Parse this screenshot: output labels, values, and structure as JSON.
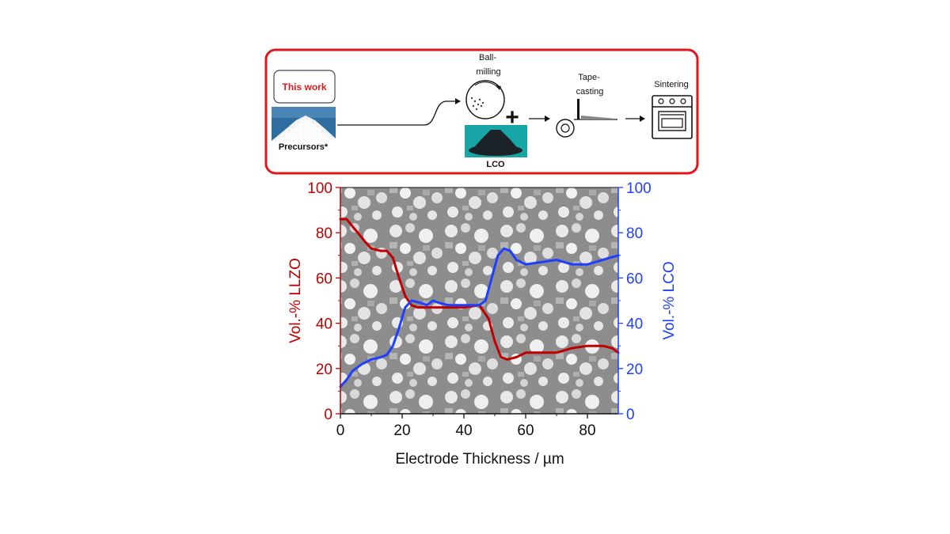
{
  "schematic": {
    "this_work": "This work",
    "precursors": "Precursors*",
    "ball_milling": [
      "Ball-",
      "milling"
    ],
    "plus": "+",
    "lco_powder": "LCO",
    "tape_casting": [
      "Tape-",
      "casting"
    ],
    "sintering": "Sintering"
  },
  "colors": {
    "frame_red": "#e0181c",
    "lzzo_red": "#c00000",
    "lco_blue": "#1f3fff",
    "lco_teal": "#17a5a5",
    "micrograph_gray": "#8d8d8d"
  },
  "chart_data": {
    "type": "line",
    "xlabel": "Electrode Thickness / µm",
    "ylabel_left": "Vol.-% LLZO",
    "ylabel_right": "Vol.-% LCO",
    "xlim": [
      0,
      90
    ],
    "ylim": [
      0,
      100
    ],
    "xticks": [
      "0",
      "20",
      "40",
      "60",
      "80"
    ],
    "yticks": [
      "0",
      "20",
      "40",
      "60",
      "80",
      "100"
    ],
    "background": "SEM cross-section micrograph",
    "series": [
      {
        "axis": "left",
        "color": "#c00000",
        "x": [
          0,
          2,
          5,
          8,
          10,
          13,
          15,
          17,
          19,
          21,
          23,
          25,
          30,
          35,
          40,
          45,
          46,
          48,
          50,
          52,
          54,
          57,
          60,
          65,
          70,
          75,
          80,
          85,
          88,
          90
        ],
        "y": [
          86,
          86,
          81,
          76,
          73,
          72,
          72,
          69,
          60,
          52,
          48,
          47,
          47,
          47,
          47,
          48,
          46,
          42,
          32,
          25,
          24,
          25,
          27,
          27,
          27,
          29,
          30,
          30,
          29,
          27
        ]
      },
      {
        "axis": "right",
        "color": "#1f3fff",
        "x": [
          0,
          2,
          4,
          7,
          10,
          13,
          15,
          17,
          19,
          21,
          23,
          26,
          28,
          30,
          32,
          35,
          40,
          45,
          47,
          49,
          51,
          53,
          55,
          57,
          60,
          65,
          70,
          75,
          80,
          85,
          90
        ],
        "y": [
          12,
          15,
          19,
          22,
          24,
          25,
          26,
          30,
          38,
          47,
          50,
          49,
          48,
          50,
          49,
          48,
          48,
          48,
          50,
          60,
          70,
          73,
          72,
          68,
          66,
          67,
          68,
          66,
          66,
          68,
          70
        ]
      }
    ]
  }
}
